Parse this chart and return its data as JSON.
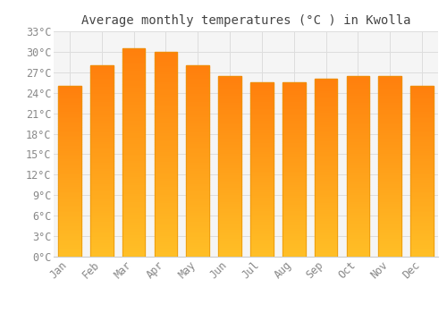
{
  "title": "Average monthly temperatures (°C ) in Kwolla",
  "months": [
    "Jan",
    "Feb",
    "Mar",
    "Apr",
    "May",
    "Jun",
    "Jul",
    "Aug",
    "Sep",
    "Oct",
    "Nov",
    "Dec"
  ],
  "values": [
    25.0,
    28.0,
    30.5,
    30.0,
    28.0,
    26.5,
    25.5,
    25.5,
    26.0,
    26.5,
    26.5,
    25.0
  ],
  "bar_color_top": "#FFB300",
  "bar_color_bottom": "#FFC84A",
  "bar_edge_color": "#E8960A",
  "background_color": "#FFFFFF",
  "plot_bg_color": "#F5F5F5",
  "grid_color": "#DDDDDD",
  "text_color": "#888888",
  "title_color": "#444444",
  "ylim": [
    0,
    33
  ],
  "yticks": [
    0,
    3,
    6,
    9,
    12,
    15,
    18,
    21,
    24,
    27,
    30,
    33
  ],
  "title_fontsize": 10,
  "tick_fontsize": 8.5
}
